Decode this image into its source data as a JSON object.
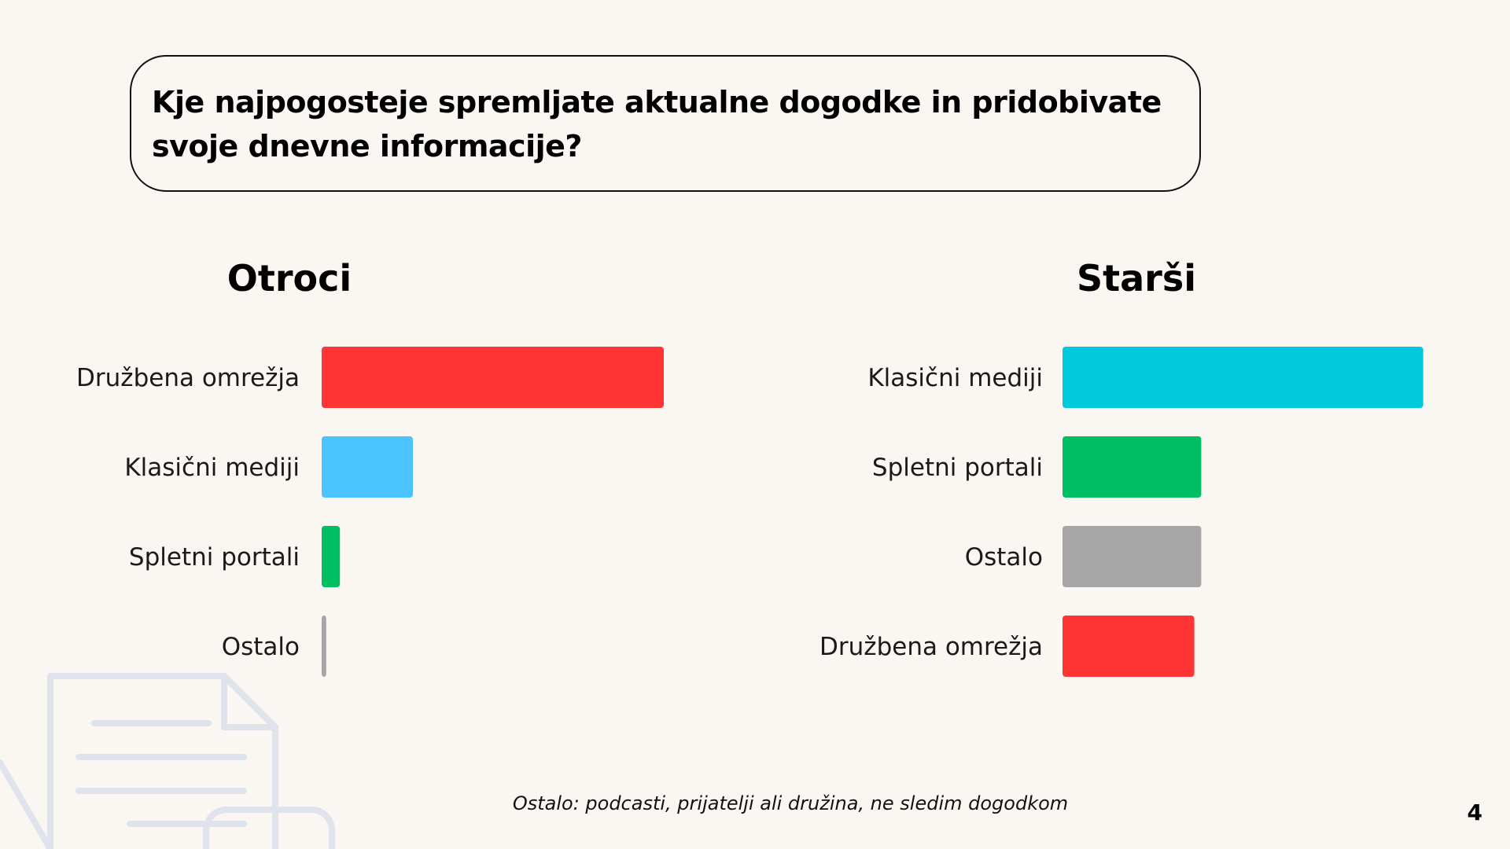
{
  "slide": {
    "question": "Kje najpogosteje spremljate aktualne dogodke in pridobivate svoje dnevne informacije?",
    "footnote": "Ostalo: podcasti, prijatelji ali družina, ne sledim dogodkom",
    "page_number": "4"
  },
  "chart_data": [
    {
      "type": "bar",
      "orientation": "horizontal",
      "title": "Otroci",
      "categories": [
        "Družbena omrežja",
        "Klasični mediji",
        "Spletni portali",
        "Ostalo"
      ],
      "values": [
        75,
        20,
        4,
        1
      ],
      "colors": [
        "#ff3434",
        "#4bc4fe",
        "#00bf63",
        "#a6a6a6"
      ],
      "xlim": [
        0,
        100
      ],
      "grid": false,
      "legend": "none"
    },
    {
      "type": "bar",
      "orientation": "horizontal",
      "title": "Starši",
      "categories": [
        "Klasični mediji",
        "Spletni portali",
        "Ostalo",
        "Družbena omrežja"
      ],
      "values": [
        52,
        20,
        20,
        19
      ],
      "colors": [
        "#00c9dc",
        "#00bf63",
        "#a6a6a6",
        "#ff3434"
      ],
      "xlim": [
        0,
        100
      ],
      "grid": false,
      "legend": "none"
    }
  ]
}
